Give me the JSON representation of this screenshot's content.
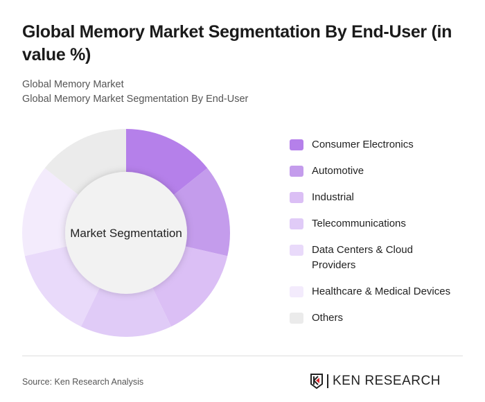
{
  "header": {
    "title": "Global Memory Market Segmentation By End-User (in value %)",
    "subtitle1": "Global Memory Market",
    "subtitle2": "Global Memory Market Segmentation By End-User"
  },
  "chart_data": {
    "type": "pie",
    "donut": true,
    "center_label": "Market Segmentation",
    "categories": [
      "Consumer Electronics",
      "Automotive",
      "Industrial",
      "Telecommunications",
      "Data Centers & Cloud Providers",
      "Healthcare & Medical Devices",
      "Others"
    ],
    "values": [
      14.3,
      14.3,
      14.3,
      14.3,
      14.3,
      14.3,
      14.3
    ],
    "colors": [
      "#b580ea",
      "#c49cec",
      "#dbbff5",
      "#e0cbf7",
      "#e9dafa",
      "#f3ebfc",
      "#ebebeb"
    ],
    "legend_position": "right"
  },
  "footer": {
    "source": "Source: Ken Research Analysis",
    "logo_text": "KEN RESEARCH"
  }
}
